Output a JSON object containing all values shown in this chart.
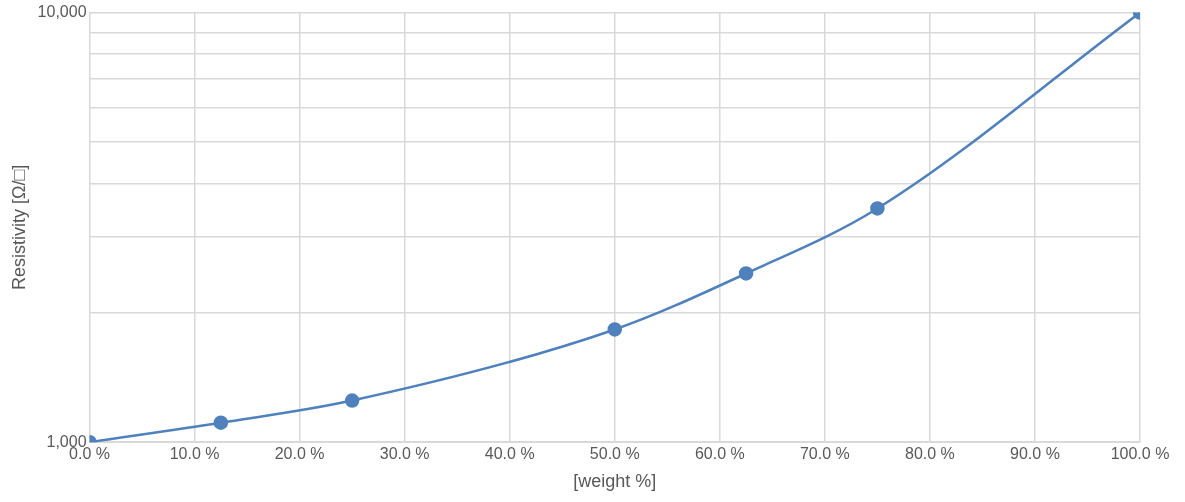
{
  "chart_data": {
    "type": "line",
    "xlabel": "[weight %]",
    "ylabel": "Resistivity [Ω/□]",
    "x": [
      0,
      12.5,
      25,
      50,
      62.5,
      75,
      100
    ],
    "series": [
      {
        "color": "#4f81bd",
        "values": [
          1000,
          1110,
          1250,
          1830,
          2470,
          3500,
          10000
        ]
      }
    ],
    "xlim": [
      0,
      100
    ],
    "xticks": [
      {
        "value": 0,
        "label": "0.0 %"
      },
      {
        "value": 10,
        "label": "10.0 %"
      },
      {
        "value": 20,
        "label": "20.0 %"
      },
      {
        "value": 30,
        "label": "30.0 %"
      },
      {
        "value": 40,
        "label": "40.0 %"
      },
      {
        "value": 50,
        "label": "50.0 %"
      },
      {
        "value": 60,
        "label": "60.0 %"
      },
      {
        "value": 70,
        "label": "70.0 %"
      },
      {
        "value": 80,
        "label": "80.0 %"
      },
      {
        "value": 90,
        "label": "90.0 %"
      },
      {
        "value": 100,
        "label": "100.0 %"
      }
    ],
    "ylim": [
      1000,
      10000
    ],
    "yticks": [
      {
        "value": 1000,
        "label": "1,000"
      },
      {
        "value": 2000,
        "label": null
      },
      {
        "value": 3000,
        "label": null
      },
      {
        "value": 4000,
        "label": null
      },
      {
        "value": 5000,
        "label": null
      },
      {
        "value": 6000,
        "label": null
      },
      {
        "value": 7000,
        "label": null
      },
      {
        "value": 8000,
        "label": null
      },
      {
        "value": 9000,
        "label": null
      },
      {
        "value": 10000,
        "label": "10,000"
      }
    ],
    "log": "y",
    "grid": true,
    "legend": false,
    "marker": "circle",
    "line_style": "solid"
  }
}
